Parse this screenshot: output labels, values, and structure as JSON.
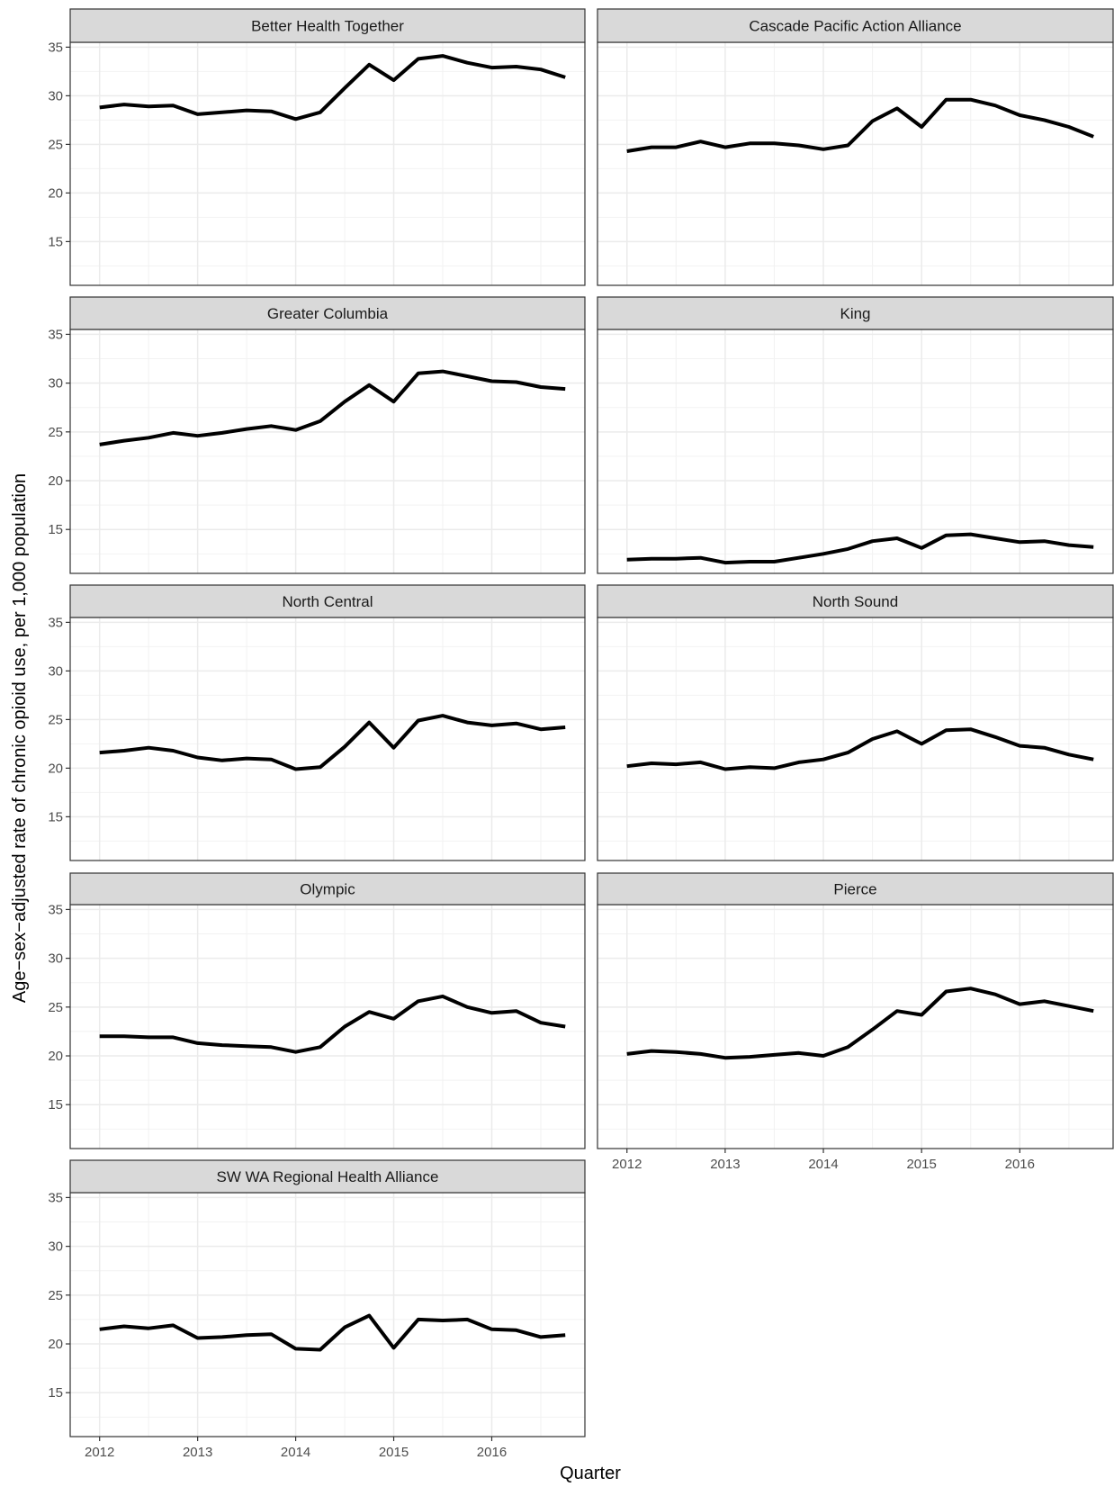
{
  "chart_data": {
    "type": "line",
    "layout": "faceted",
    "xlabel": "Quarter",
    "ylabel": "Age−sex−adjusted rate of chronic opioid use, per 1,000 population",
    "ylim": [
      10.5,
      35.5
    ],
    "yticks": [
      15,
      20,
      25,
      30,
      35
    ],
    "xlim": [
      2011.7,
      2016.95
    ],
    "xticks": [
      2012,
      2013,
      2014,
      2015,
      2016
    ],
    "grid": true,
    "x": [
      2012.0,
      2012.25,
      2012.5,
      2012.75,
      2013.0,
      2013.25,
      2013.5,
      2013.75,
      2014.0,
      2014.25,
      2014.5,
      2014.75,
      2015.0,
      2015.25,
      2015.5,
      2015.75,
      2016.0,
      2016.25,
      2016.5,
      2016.75
    ],
    "facets": [
      {
        "name": "Better Health Together",
        "values": [
          28.8,
          29.1,
          28.9,
          29.0,
          28.1,
          28.3,
          28.5,
          28.4,
          27.6,
          28.3,
          30.8,
          33.2,
          31.6,
          33.8,
          34.1,
          33.4,
          32.9,
          33.0,
          32.7,
          31.9
        ]
      },
      {
        "name": "Cascade Pacific Action Alliance",
        "values": [
          24.3,
          24.7,
          24.7,
          25.3,
          24.7,
          25.1,
          25.1,
          24.9,
          24.5,
          24.9,
          27.4,
          28.7,
          26.8,
          29.6,
          29.6,
          29.0,
          28.0,
          27.5,
          26.8,
          25.8
        ]
      },
      {
        "name": "Greater Columbia",
        "values": [
          23.7,
          24.1,
          24.4,
          24.9,
          24.6,
          24.9,
          25.3,
          25.6,
          25.2,
          26.1,
          28.1,
          29.8,
          28.1,
          31.0,
          31.2,
          30.7,
          30.2,
          30.1,
          29.6,
          29.4
        ]
      },
      {
        "name": "King",
        "values": [
          11.9,
          12.0,
          12.0,
          12.1,
          11.6,
          11.7,
          11.7,
          12.1,
          12.5,
          13.0,
          13.8,
          14.1,
          13.1,
          14.4,
          14.5,
          14.1,
          13.7,
          13.8,
          13.4,
          13.2
        ]
      },
      {
        "name": "North Central",
        "values": [
          21.6,
          21.8,
          22.1,
          21.8,
          21.1,
          20.8,
          21.0,
          20.9,
          19.9,
          20.1,
          22.2,
          24.7,
          22.1,
          24.9,
          25.4,
          24.7,
          24.4,
          24.6,
          24.0,
          24.2
        ]
      },
      {
        "name": "North Sound",
        "values": [
          20.2,
          20.5,
          20.4,
          20.6,
          19.9,
          20.1,
          20.0,
          20.6,
          20.9,
          21.6,
          23.0,
          23.8,
          22.5,
          23.9,
          24.0,
          23.2,
          22.3,
          22.1,
          21.4,
          20.9
        ]
      },
      {
        "name": "Olympic",
        "values": [
          22.0,
          22.0,
          21.9,
          21.9,
          21.3,
          21.1,
          21.0,
          20.9,
          20.4,
          20.9,
          23.0,
          24.5,
          23.8,
          25.6,
          26.1,
          25.0,
          24.4,
          24.6,
          23.4,
          23.0
        ]
      },
      {
        "name": "Pierce",
        "values": [
          20.2,
          20.5,
          20.4,
          20.2,
          19.8,
          19.9,
          20.1,
          20.3,
          20.0,
          20.9,
          22.7,
          24.6,
          24.2,
          26.6,
          26.9,
          26.3,
          25.3,
          25.6,
          25.1,
          24.6
        ]
      },
      {
        "name": "SW WA Regional Health Alliance",
        "values": [
          21.5,
          21.8,
          21.6,
          21.9,
          20.6,
          20.7,
          20.9,
          21.0,
          19.5,
          19.4,
          21.7,
          22.9,
          19.6,
          22.5,
          22.4,
          22.5,
          21.5,
          21.4,
          20.7,
          20.9
        ]
      }
    ]
  }
}
